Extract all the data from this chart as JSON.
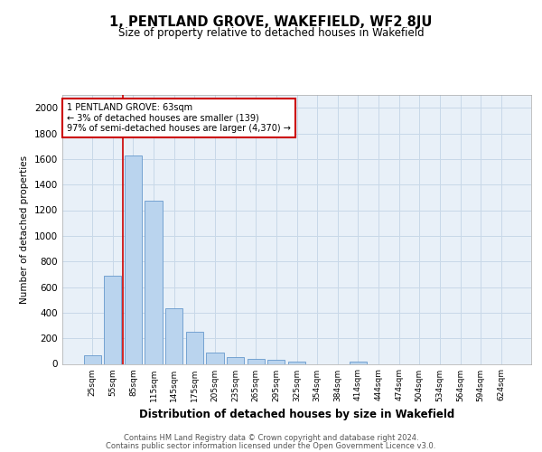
{
  "title": "1, PENTLAND GROVE, WAKEFIELD, WF2 8JU",
  "subtitle": "Size of property relative to detached houses in Wakefield",
  "xlabel": "Distribution of detached houses by size in Wakefield",
  "ylabel": "Number of detached properties",
  "bar_color": "#bad4ee",
  "bar_edge_color": "#6699cc",
  "categories": [
    "25sqm",
    "55sqm",
    "85sqm",
    "115sqm",
    "145sqm",
    "175sqm",
    "205sqm",
    "235sqm",
    "265sqm",
    "295sqm",
    "325sqm",
    "354sqm",
    "384sqm",
    "414sqm",
    "444sqm",
    "474sqm",
    "504sqm",
    "534sqm",
    "564sqm",
    "594sqm",
    "624sqm"
  ],
  "values": [
    65,
    690,
    1630,
    1275,
    435,
    250,
    85,
    55,
    40,
    30,
    20,
    0,
    0,
    20,
    0,
    0,
    0,
    0,
    0,
    0,
    0
  ],
  "ylim": [
    0,
    2100
  ],
  "yticks": [
    0,
    200,
    400,
    600,
    800,
    1000,
    1200,
    1400,
    1600,
    1800,
    2000
  ],
  "property_line_x": 1.5,
  "annotation_line1": "1 PENTLAND GROVE: 63sqm",
  "annotation_line2": "← 3% of detached houses are smaller (139)",
  "annotation_line3": "97% of semi-detached houses are larger (4,370) →",
  "annotation_box_color": "#cc0000",
  "footer_line1": "Contains HM Land Registry data © Crown copyright and database right 2024.",
  "footer_line2": "Contains public sector information licensed under the Open Government Licence v3.0.",
  "grid_color": "#c8d8e8",
  "background_color": "#e8f0f8"
}
